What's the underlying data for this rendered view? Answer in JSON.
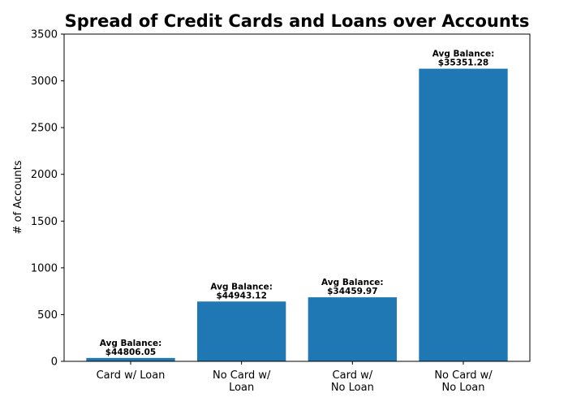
{
  "chart_data": {
    "type": "bar",
    "title": "Spread of Credit Cards and Loans over Accounts",
    "xlabel": "",
    "ylabel": "# of Accounts",
    "ylim": [
      0,
      3500
    ],
    "yticks": [
      0,
      500,
      1000,
      1500,
      2000,
      2500,
      3000,
      3500
    ],
    "grid": false,
    "categories": [
      [
        "Card w/ Loan"
      ],
      [
        "No Card w/",
        "Loan"
      ],
      [
        "Card w/",
        "No Loan"
      ],
      [
        "No Card w/",
        "No Loan"
      ]
    ],
    "values": [
      36,
      640,
      685,
      3130
    ],
    "data_labels": [
      [
        "Avg Balance:",
        "$44806.05"
      ],
      [
        "Avg Balance:",
        "$44943.12"
      ],
      [
        "Avg Balance:",
        "$34459.97"
      ],
      [
        "Avg Balance:",
        "$35351.28"
      ]
    ],
    "bar_color": "#1f77b4"
  }
}
